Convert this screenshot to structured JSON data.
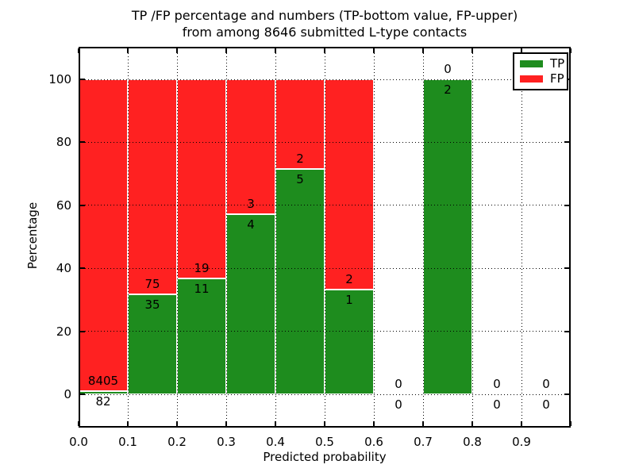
{
  "title": {
    "line1": "TP /FP percentage and numbers (TP-bottom value, FP-upper)",
    "line2": "from among 8646 submitted L-type contacts"
  },
  "chart_data": {
    "type": "bar",
    "stacked": true,
    "normalized_to_percent": true,
    "title": "TP /FP percentage and numbers (TP-bottom value, FP-upper)\nfrom among 8646 submitted L-type contacts",
    "xlabel": "Predicted probability",
    "ylabel": "Percentage",
    "xlim": [
      0.0,
      1.0
    ],
    "ylim": [
      -10.5,
      110.5
    ],
    "grid": true,
    "bin_width": 0.1,
    "x_tick_labels": [
      "0.0",
      "0.1",
      "0.2",
      "0.3",
      "0.4",
      "0.5",
      "0.6",
      "0.7",
      "0.8",
      "0.9"
    ],
    "y_tick_values": [
      0,
      20,
      40,
      60,
      80,
      100
    ],
    "y_tick_labels": [
      "0",
      "20",
      "40",
      "60",
      "80",
      "100"
    ],
    "colors": {
      "tp": "#1e8c1e",
      "fp": "#ff2121"
    },
    "series_names": [
      "TP",
      "FP"
    ],
    "bins": [
      {
        "range": [
          0.0,
          0.1
        ],
        "tp": 82,
        "fp": 8405,
        "tp_pct": 0.97,
        "fp_pct": 99.03
      },
      {
        "range": [
          0.1,
          0.2
        ],
        "tp": 35,
        "fp": 75,
        "tp_pct": 31.82,
        "fp_pct": 68.18
      },
      {
        "range": [
          0.2,
          0.3
        ],
        "tp": 11,
        "fp": 19,
        "tp_pct": 36.67,
        "fp_pct": 63.33
      },
      {
        "range": [
          0.3,
          0.4
        ],
        "tp": 4,
        "fp": 3,
        "tp_pct": 57.14,
        "fp_pct": 42.86
      },
      {
        "range": [
          0.4,
          0.5
        ],
        "tp": 5,
        "fp": 2,
        "tp_pct": 71.43,
        "fp_pct": 28.57
      },
      {
        "range": [
          0.5,
          0.6
        ],
        "tp": 1,
        "fp": 2,
        "tp_pct": 33.33,
        "fp_pct": 66.67
      },
      {
        "range": [
          0.6,
          0.7
        ],
        "tp": 0,
        "fp": 0,
        "tp_pct": 0,
        "fp_pct": 0
      },
      {
        "range": [
          0.7,
          0.8
        ],
        "tp": 2,
        "fp": 0,
        "tp_pct": 100,
        "fp_pct": 0
      },
      {
        "range": [
          0.8,
          0.9
        ],
        "tp": 0,
        "fp": 0,
        "tp_pct": 0,
        "fp_pct": 0
      },
      {
        "range": [
          0.9,
          1.0
        ],
        "tp": 0,
        "fp": 0,
        "tp_pct": 0,
        "fp_pct": 0
      }
    ],
    "legend": {
      "position": "upper right",
      "items": [
        {
          "label": "TP",
          "color": "#1e8c1e"
        },
        {
          "label": "FP",
          "color": "#ff2121"
        }
      ]
    }
  }
}
